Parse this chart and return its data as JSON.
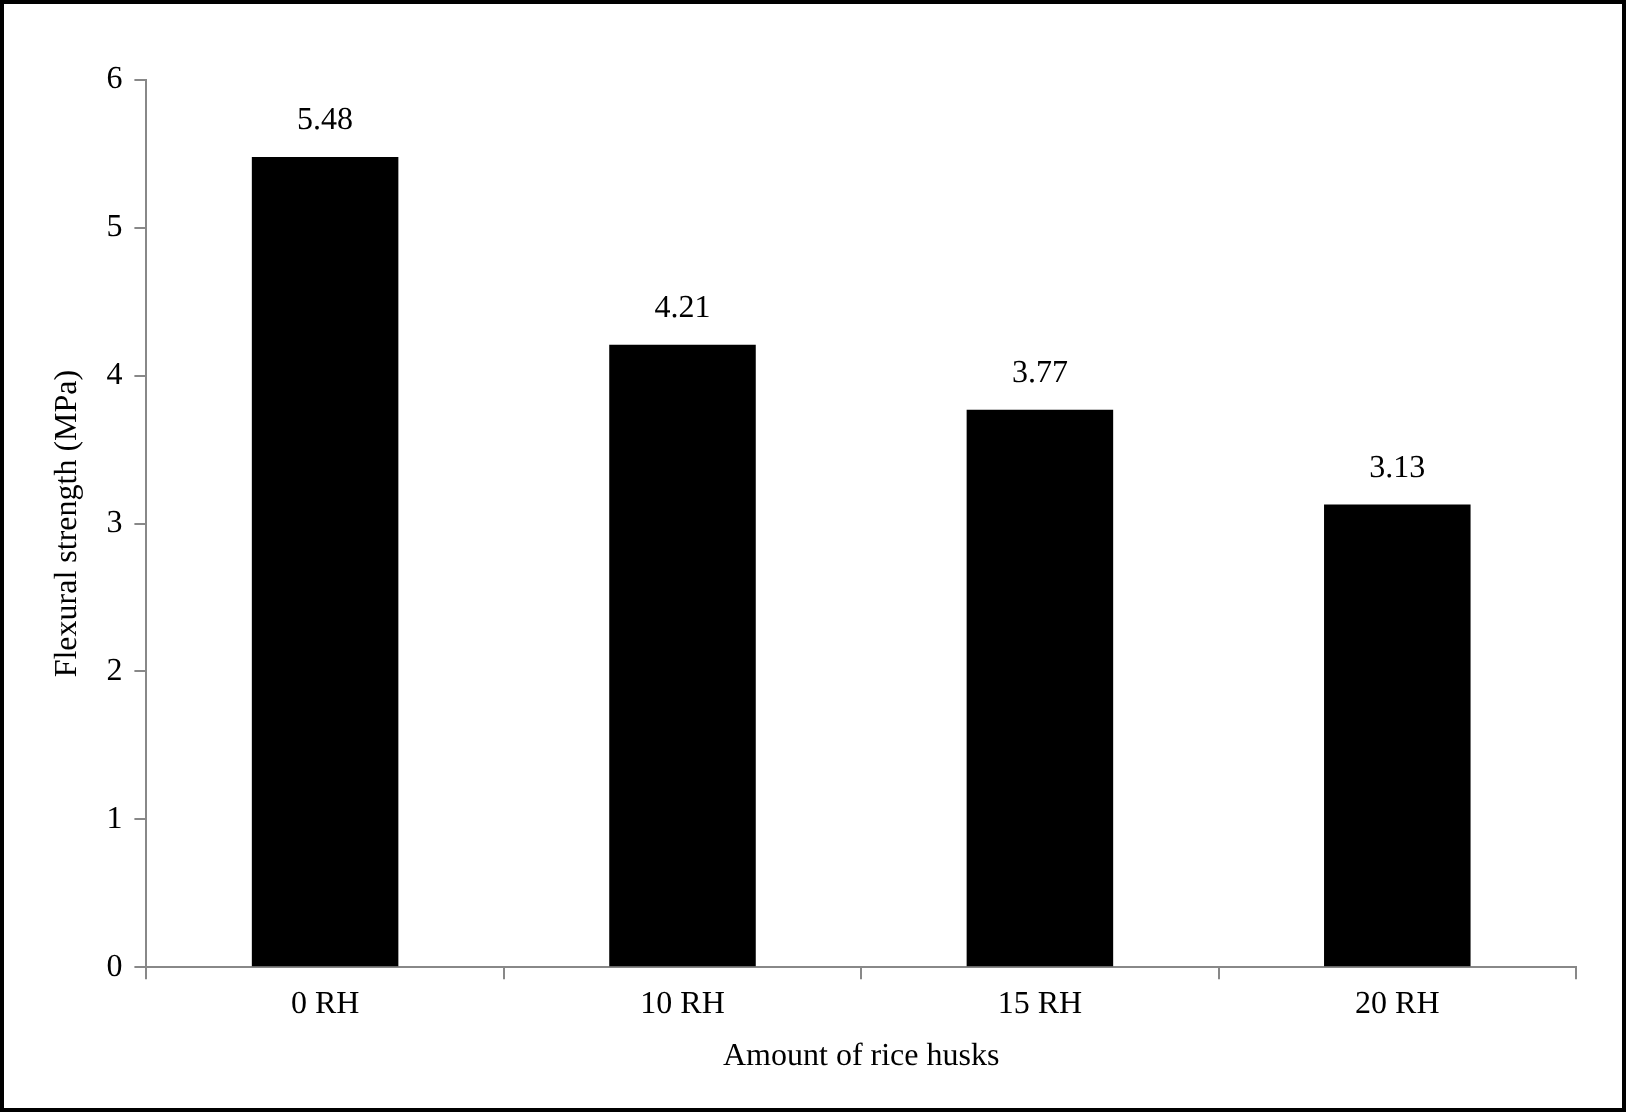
{
  "chart_data": {
    "type": "bar",
    "xlabel": "Amount of rice husks",
    "ylabel": "Flexural strength (MPa)",
    "categories": [
      "0 RH",
      "10 RH",
      "15 RH",
      "20 RH"
    ],
    "values": [
      5.48,
      4.21,
      3.77,
      3.13
    ],
    "color": "#000000",
    "ylim": [
      0,
      6
    ],
    "yticks": [
      0,
      1,
      2,
      3,
      4,
      5,
      6
    ],
    "grid": false,
    "legend": false,
    "data_labels": true
  }
}
